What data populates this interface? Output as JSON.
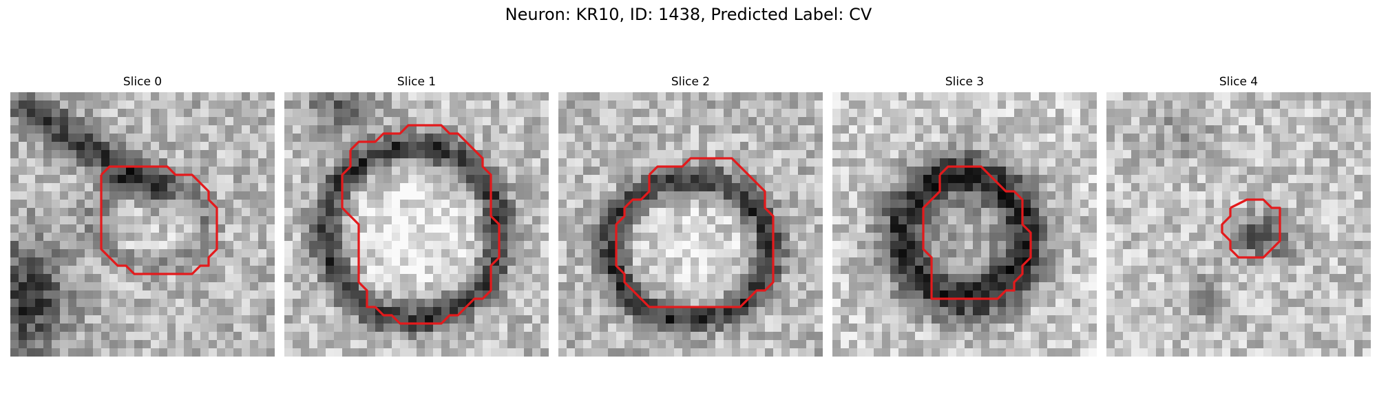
{
  "figure": {
    "title": "Neuron: KR10, ID: 1438, Predicted Label: CV"
  },
  "colors": {
    "contour": "#e31a1c",
    "background": "#ffffff",
    "text": "#000000"
  },
  "panels": [
    {
      "title": "Slice 0"
    },
    {
      "title": "Slice 1"
    },
    {
      "title": "Slice 2"
    },
    {
      "title": "Slice 3"
    },
    {
      "title": "Slice 4"
    }
  ]
}
